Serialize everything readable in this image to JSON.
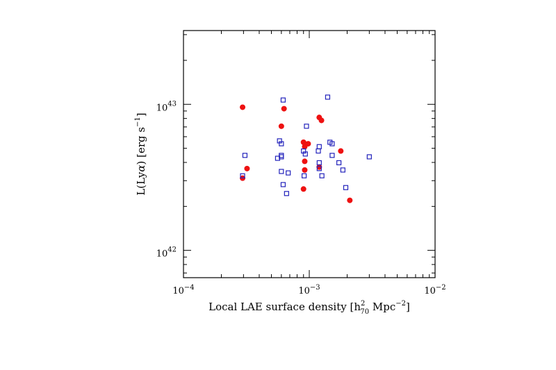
{
  "chart_data": {
    "type": "scatter",
    "title": "",
    "xlabel": {
      "prefix": "Local LAE surface density [h",
      "sup": "2",
      "sub": "70",
      "suffix": " Mpc",
      "suffix_sup": "−2",
      "close": "]"
    },
    "ylabel": {
      "prefix": "L(Ly",
      "alpha": "α",
      "suffix": ") [erg s",
      "suffix_sup": "−1",
      "close": "]"
    },
    "xscale": "log",
    "yscale": "log",
    "xlim": [
      0.0001,
      0.01
    ],
    "ylim": [
      6.5e+41,
      3.2e+43
    ],
    "x_ticks": [
      {
        "value": 0.0001,
        "base": "10",
        "exp": "−4"
      },
      {
        "value": 0.001,
        "base": "10",
        "exp": "−3"
      },
      {
        "value": 0.01,
        "base": "10",
        "exp": "−2"
      }
    ],
    "y_ticks": [
      {
        "value": 1e+42,
        "base": "10",
        "exp": "42"
      },
      {
        "value": 1e+43,
        "base": "10",
        "exp": "43"
      }
    ],
    "grid": false,
    "legend": "none",
    "series": [
      {
        "marker": "filled-circle",
        "color": "#ee1111",
        "points": [
          [
            0.000295,
            9.55e+42
          ],
          [
            0.000295,
            3.12e+42
          ],
          [
            0.00032,
            3.63e+42
          ],
          [
            0.0006,
            7.08e+42
          ],
          [
            0.00063,
            9.33e+42
          ],
          [
            0.0009,
            5.5e+42
          ],
          [
            0.00092,
            5.13e+42
          ],
          [
            0.00092,
            4.07e+42
          ],
          [
            0.00092,
            3.55e+42
          ],
          [
            0.0009,
            2.63e+42
          ],
          [
            0.00098,
            5.37e+42
          ],
          [
            0.0012,
            8.13e+42
          ],
          [
            0.00125,
            7.76e+42
          ],
          [
            0.0012,
            3.72e+42
          ],
          [
            0.00178,
            4.79e+42
          ],
          [
            0.0021,
            2.2e+42
          ]
        ]
      },
      {
        "marker": "open-square",
        "color": "#2222bb",
        "points": [
          [
            0.000295,
            3.24e+42
          ],
          [
            0.000308,
            4.47e+42
          ],
          [
            0.00056,
            4.27e+42
          ],
          [
            0.00058,
            5.62e+42
          ],
          [
            0.0006,
            5.37e+42
          ],
          [
            0.0006,
            4.47e+42
          ],
          [
            0.0006,
            4.37e+42
          ],
          [
            0.0006,
            3.47e+42
          ],
          [
            0.00062,
            1.07e+43
          ],
          [
            0.00062,
            2.82e+42
          ],
          [
            0.00066,
            2.45e+42
          ],
          [
            0.00068,
            3.39e+42
          ],
          [
            0.0009,
            4.79e+42
          ],
          [
            0.00091,
            3.24e+42
          ],
          [
            0.00093,
            4.57e+42
          ],
          [
            0.00095,
            7.08e+42
          ],
          [
            0.00118,
            4.79e+42
          ],
          [
            0.0012,
            5.13e+42
          ],
          [
            0.0012,
            3.98e+42
          ],
          [
            0.0012,
            3.63e+42
          ],
          [
            0.00126,
            3.24e+42
          ],
          [
            0.0014,
            1.12e+43
          ],
          [
            0.00146,
            5.5e+42
          ],
          [
            0.00152,
            5.37e+42
          ],
          [
            0.00152,
            4.47e+42
          ],
          [
            0.00172,
            3.98e+42
          ],
          [
            0.00185,
            3.55e+42
          ],
          [
            0.00195,
            2.69e+42
          ],
          [
            0.003,
            4.37e+42
          ]
        ]
      }
    ]
  }
}
